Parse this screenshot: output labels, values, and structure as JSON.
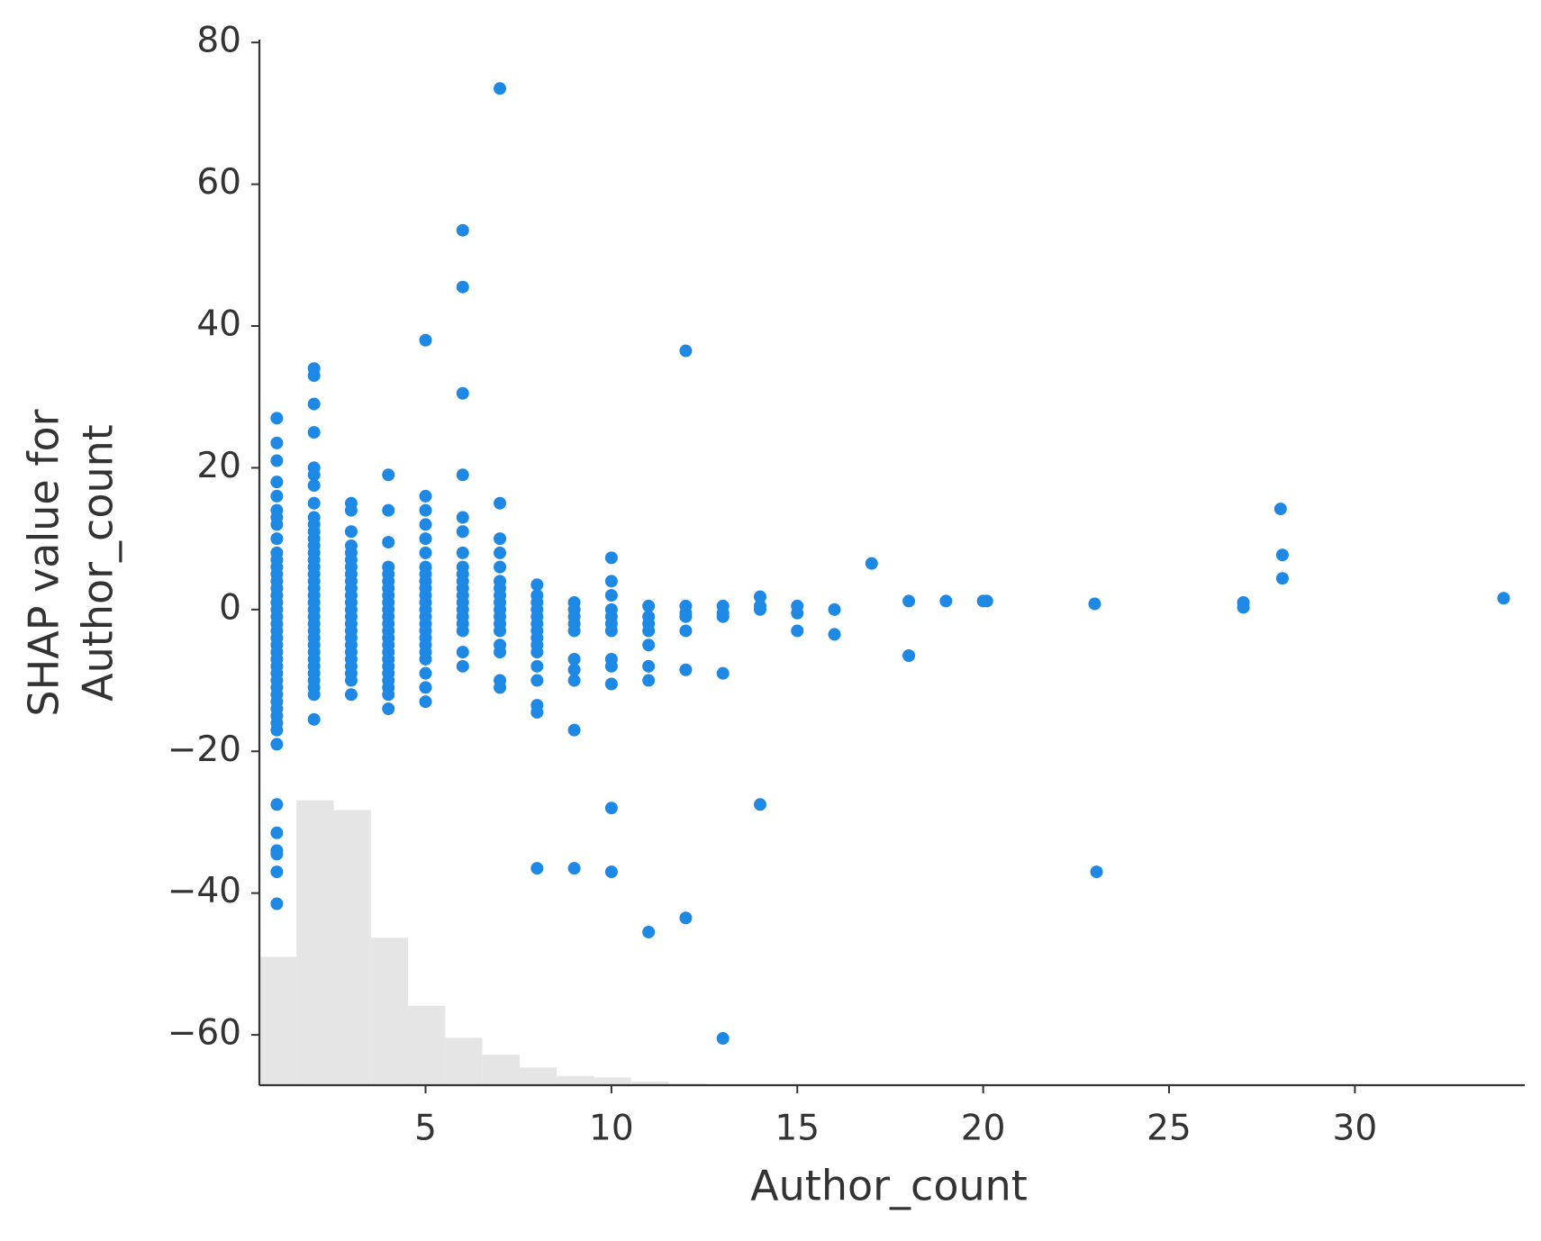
{
  "chart_data": {
    "type": "scatter",
    "xlabel": "Author_count",
    "ylabel": [
      "SHAP value for",
      "Author_count"
    ],
    "xlim": [
      0.53,
      34.57
    ],
    "ylim": [
      -67.1,
      80.4
    ],
    "xticks": [
      5,
      10,
      15,
      20,
      25,
      30
    ],
    "yticks": [
      {
        "value": -60,
        "label": "−60"
      },
      {
        "value": -40,
        "label": "−40"
      },
      {
        "value": -20,
        "label": "−20"
      },
      0,
      20,
      40,
      60,
      80
    ],
    "color": "#1e88e5",
    "histogram": {
      "color": "#e5e5e5",
      "bins": [
        0.53,
        1.53,
        2.53,
        3.53,
        4.53,
        5.53,
        6.53,
        7.53,
        8.53,
        9.53,
        10.53,
        11.53,
        12.53
      ],
      "values": [
        -49.0,
        -26.9,
        -28.3,
        -46.3,
        -55.9,
        -60.4,
        -62.8,
        -64.6,
        -65.8,
        -66.0,
        -66.6,
        -66.9
      ]
    },
    "x": [
      1,
      1,
      1,
      1,
      1,
      1,
      1,
      1,
      1,
      1,
      1,
      1,
      1,
      1,
      1,
      1,
      1,
      1,
      1,
      1,
      1,
      1,
      1,
      1,
      1,
      1,
      1,
      1,
      1,
      1,
      1,
      1,
      1,
      1,
      1,
      1,
      1,
      1,
      1,
      1,
      1,
      1,
      2,
      2,
      2,
      2,
      2,
      2,
      2,
      2,
      2,
      2,
      2,
      2,
      2,
      2,
      2,
      2,
      2,
      2,
      2,
      2,
      2,
      2,
      2,
      2,
      2,
      2,
      2,
      2,
      2,
      2,
      2,
      2,
      2,
      2,
      2,
      3,
      3,
      3,
      3,
      3,
      3,
      3,
      3,
      3,
      3,
      3,
      3,
      3,
      3,
      3,
      3,
      3,
      3,
      3,
      3,
      3,
      3,
      3,
      3,
      4,
      4,
      4,
      4,
      4,
      4,
      4,
      4,
      4,
      4,
      4,
      4,
      4,
      4,
      4,
      4,
      4,
      4,
      4,
      4,
      4,
      4,
      4,
      5,
      5,
      5,
      5,
      5,
      5,
      5,
      5,
      5,
      5,
      5,
      5,
      5,
      5,
      5,
      5,
      5,
      5,
      5,
      5,
      5,
      5,
      5,
      6,
      6,
      6,
      6,
      6,
      6,
      6,
      6,
      6,
      6,
      6,
      6,
      6,
      6,
      6,
      6,
      6,
      6,
      6,
      7,
      7,
      7,
      7,
      7,
      7,
      7,
      7,
      7,
      7,
      7,
      7,
      7,
      7,
      7,
      7,
      7,
      8,
      8,
      8,
      8,
      8,
      8,
      8,
      8,
      8,
      8,
      8,
      8,
      8,
      8,
      8,
      9,
      9,
      9,
      9,
      9,
      9,
      9,
      9,
      9,
      9,
      10,
      10,
      10,
      10,
      10,
      10,
      10,
      10,
      10,
      10,
      10,
      10,
      11,
      11,
      11,
      11,
      11,
      11,
      11,
      11,
      12,
      12,
      12,
      12,
      12,
      12,
      12,
      13,
      13,
      13,
      13,
      13,
      14,
      14,
      14,
      14,
      15,
      15,
      15,
      16,
      16,
      17,
      18,
      18,
      19,
      20,
      20.1,
      23,
      23.05,
      27,
      27,
      28,
      28.05,
      28.05,
      34
    ],
    "values": [
      27,
      23.5,
      21,
      18,
      16,
      14,
      13,
      12,
      10,
      8,
      7,
      6,
      5,
      4,
      3,
      2,
      1,
      0,
      -1,
      -2,
      -3,
      -4,
      -5,
      -6,
      -7,
      -8,
      -9,
      -10,
      -11,
      -12,
      -13,
      -14,
      -15,
      -16,
      -17,
      -19,
      -27.5,
      -31.5,
      -34,
      -34.5,
      -37,
      -41.5,
      34,
      33,
      29,
      25,
      20,
      19,
      17.5,
      15,
      13,
      12,
      11,
      10,
      9,
      8,
      7,
      6,
      5,
      4,
      3,
      2,
      1,
      0,
      -1,
      -2,
      -3,
      -4,
      -5,
      -6,
      -7,
      -8,
      -9,
      -10,
      -11,
      -12,
      -15.5,
      15,
      14,
      11,
      9,
      8,
      7,
      6,
      5,
      4,
      3,
      2,
      1,
      0,
      -1,
      -2,
      -3,
      -4,
      -5,
      -6,
      -7,
      -8,
      -9,
      -10,
      -12,
      19,
      14,
      9.5,
      6,
      5,
      4,
      3,
      2,
      1,
      0,
      -1,
      -2,
      -3,
      -4,
      -5,
      -6,
      -7,
      -8,
      -9,
      -10,
      -11,
      -12,
      -14,
      38,
      16,
      14,
      12,
      10,
      8,
      6,
      5,
      4,
      3,
      2,
      1,
      0,
      -1,
      -2,
      -3,
      -4,
      -5,
      -6,
      -7,
      -9,
      -11,
      -13,
      53.5,
      45.5,
      30.5,
      19,
      13,
      11,
      8,
      6,
      5,
      4,
      3,
      2,
      1,
      0,
      -1,
      -2,
      -3,
      -6,
      -8,
      73.5,
      15,
      10,
      8,
      6,
      4,
      3,
      2,
      1,
      0,
      -1,
      -2,
      -3,
      -5,
      -6,
      -10,
      -11,
      3.5,
      2,
      1,
      0,
      -1,
      -2,
      -3,
      -4,
      -5,
      -6,
      -8,
      -10,
      -13.5,
      -14.5,
      -36.5,
      1,
      0,
      -1,
      -2,
      -3,
      -7,
      -8.5,
      -10,
      -17,
      -36.5,
      7.3,
      4,
      2,
      0,
      -1,
      -2,
      -3,
      -7,
      -8,
      -10.5,
      -28,
      -37,
      0.5,
      -1,
      -2,
      -3,
      -5,
      -8,
      -10,
      -45.5,
      36.5,
      0.5,
      -0.5,
      -1,
      -3,
      -8.5,
      -43.5,
      0.5,
      -0.5,
      -1,
      -9,
      -60.5,
      1.8,
      0.5,
      0,
      -27.5,
      0.5,
      -0.5,
      -3,
      0,
      -3.5,
      6.5,
      1.2,
      -6.5,
      1.2,
      1.2,
      1.2,
      0.8,
      -37,
      1,
      0.3,
      14.2,
      7.7,
      4.4,
      1.6
    ]
  }
}
